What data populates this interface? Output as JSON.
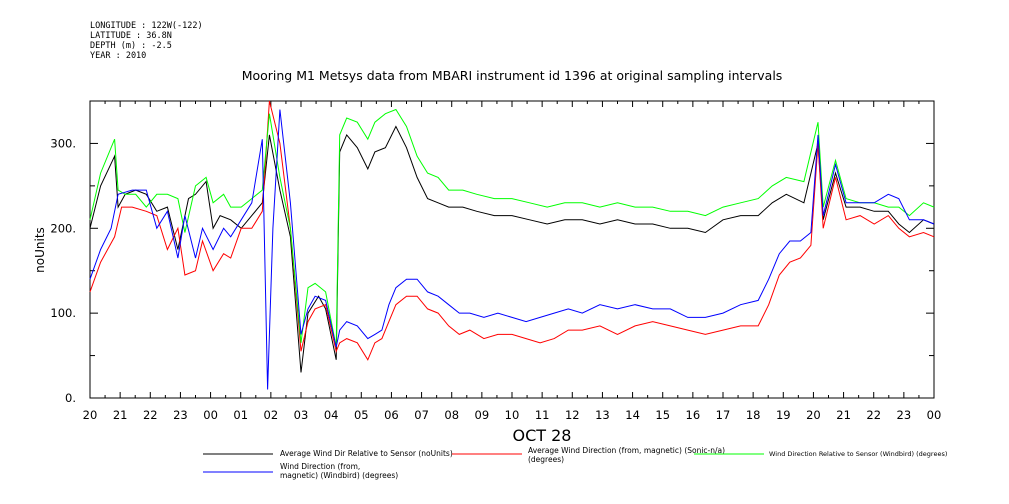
{
  "header": {
    "longitude": "LONGITUDE : 122W(-122)",
    "latitude": "LATITUDE : 36.8N",
    "depth": "DEPTH (m) : -2.5",
    "year": "YEAR : 2010"
  },
  "chart_data": {
    "type": "line",
    "title": "Mooring M1 Metsys data from MBARI instrument id 1396 at original sampling intervals",
    "xlabel": "OCT 28",
    "ylabel": "noUnits",
    "x_ticks": [
      "20",
      "21",
      "22",
      "23",
      "00",
      "01",
      "02",
      "03",
      "04",
      "05",
      "06",
      "07",
      "08",
      "09",
      "10",
      "11",
      "12",
      "13",
      "14",
      "15",
      "16",
      "17",
      "18",
      "19",
      "20",
      "21",
      "22",
      "23",
      "00"
    ],
    "ylim": [
      0,
      350
    ],
    "y_ticks": [
      0,
      100,
      200,
      300
    ],
    "y_tick_labels": [
      "0.",
      "100.",
      "200.",
      "300."
    ],
    "grid": false,
    "legend_placement": "bottom",
    "series": [
      {
        "name": "Average Wind Dir Relative to Sensor (noUnits)",
        "color": "#000000",
        "points": [
          [
            20.0,
            200
          ],
          [
            20.3,
            250
          ],
          [
            20.7,
            285
          ],
          [
            20.8,
            225
          ],
          [
            21.0,
            240
          ],
          [
            21.3,
            245
          ],
          [
            21.6,
            240
          ],
          [
            21.9,
            220
          ],
          [
            22.2,
            225
          ],
          [
            22.5,
            175
          ],
          [
            22.8,
            235
          ],
          [
            23.0,
            240
          ],
          [
            23.3,
            255
          ],
          [
            23.5,
            200
          ],
          [
            23.7,
            215
          ],
          [
            24.0,
            210
          ],
          [
            24.3,
            200
          ],
          [
            24.6,
            215
          ],
          [
            24.9,
            230
          ],
          [
            25.1,
            310
          ],
          [
            25.4,
            245
          ],
          [
            25.7,
            190
          ],
          [
            26.0,
            30
          ],
          [
            26.2,
            100
          ],
          [
            26.5,
            120
          ],
          [
            26.7,
            105
          ],
          [
            27.0,
            45
          ],
          [
            27.1,
            290
          ],
          [
            27.3,
            310
          ],
          [
            27.6,
            295
          ],
          [
            27.9,
            270
          ],
          [
            28.1,
            290
          ],
          [
            28.4,
            295
          ],
          [
            28.7,
            320
          ],
          [
            29.0,
            295
          ],
          [
            29.3,
            260
          ],
          [
            29.6,
            235
          ],
          [
            29.9,
            230
          ],
          [
            30.2,
            225
          ],
          [
            30.6,
            225
          ],
          [
            31.0,
            220
          ],
          [
            31.5,
            215
          ],
          [
            32.0,
            215
          ],
          [
            32.5,
            210
          ],
          [
            33.0,
            205
          ],
          [
            33.5,
            210
          ],
          [
            34.0,
            210
          ],
          [
            34.5,
            205
          ],
          [
            35.0,
            210
          ],
          [
            35.5,
            205
          ],
          [
            36.0,
            205
          ],
          [
            36.5,
            200
          ],
          [
            37.0,
            200
          ],
          [
            37.5,
            195
          ],
          [
            38.0,
            210
          ],
          [
            38.5,
            215
          ],
          [
            39.0,
            215
          ],
          [
            39.4,
            230
          ],
          [
            39.8,
            240
          ],
          [
            40.3,
            230
          ],
          [
            40.7,
            300
          ],
          [
            40.85,
            210
          ],
          [
            41.2,
            265
          ],
          [
            41.5,
            225
          ],
          [
            41.9,
            225
          ],
          [
            42.3,
            220
          ],
          [
            42.7,
            220
          ],
          [
            43.0,
            205
          ],
          [
            43.3,
            195
          ],
          [
            43.7,
            210
          ],
          [
            44.0,
            205
          ]
        ]
      },
      {
        "name": "Average Wind Direction (from, magnetic) (Sonic-n/a) (degrees)",
        "color": "#ff0000",
        "points": [
          [
            20.0,
            125
          ],
          [
            20.3,
            160
          ],
          [
            20.7,
            190
          ],
          [
            20.9,
            225
          ],
          [
            21.2,
            225
          ],
          [
            21.6,
            220
          ],
          [
            21.9,
            215
          ],
          [
            22.2,
            175
          ],
          [
            22.5,
            200
          ],
          [
            22.7,
            145
          ],
          [
            23.0,
            150
          ],
          [
            23.2,
            185
          ],
          [
            23.5,
            150
          ],
          [
            23.8,
            170
          ],
          [
            24.0,
            165
          ],
          [
            24.3,
            200
          ],
          [
            24.6,
            200
          ],
          [
            24.9,
            220
          ],
          [
            25.1,
            350
          ],
          [
            25.4,
            300
          ],
          [
            25.7,
            200
          ],
          [
            26.0,
            55
          ],
          [
            26.2,
            90
          ],
          [
            26.4,
            105
          ],
          [
            26.7,
            110
          ],
          [
            27.0,
            55
          ],
          [
            27.1,
            65
          ],
          [
            27.3,
            70
          ],
          [
            27.6,
            65
          ],
          [
            27.9,
            45
          ],
          [
            28.1,
            65
          ],
          [
            28.3,
            70
          ],
          [
            28.5,
            90
          ],
          [
            28.7,
            110
          ],
          [
            29.0,
            120
          ],
          [
            29.3,
            120
          ],
          [
            29.6,
            105
          ],
          [
            29.9,
            100
          ],
          [
            30.2,
            85
          ],
          [
            30.5,
            75
          ],
          [
            30.8,
            80
          ],
          [
            31.2,
            70
          ],
          [
            31.6,
            75
          ],
          [
            32.0,
            75
          ],
          [
            32.4,
            70
          ],
          [
            32.8,
            65
          ],
          [
            33.2,
            70
          ],
          [
            33.6,
            80
          ],
          [
            34.0,
            80
          ],
          [
            34.5,
            85
          ],
          [
            35.0,
            75
          ],
          [
            35.5,
            85
          ],
          [
            36.0,
            90
          ],
          [
            36.5,
            85
          ],
          [
            37.0,
            80
          ],
          [
            37.5,
            75
          ],
          [
            38.0,
            80
          ],
          [
            38.5,
            85
          ],
          [
            39.0,
            85
          ],
          [
            39.3,
            110
          ],
          [
            39.6,
            145
          ],
          [
            39.9,
            160
          ],
          [
            40.2,
            165
          ],
          [
            40.5,
            180
          ],
          [
            40.7,
            300
          ],
          [
            40.85,
            200
          ],
          [
            41.2,
            260
          ],
          [
            41.5,
            210
          ],
          [
            41.9,
            215
          ],
          [
            42.3,
            205
          ],
          [
            42.7,
            215
          ],
          [
            43.0,
            200
          ],
          [
            43.3,
            190
          ],
          [
            43.7,
            195
          ],
          [
            44.0,
            190
          ]
        ]
      },
      {
        "name": "Wind Direction Relative to Sensor (Windbird) (degrees)",
        "color": "#00ff00",
        "points": [
          [
            20.0,
            210
          ],
          [
            20.3,
            265
          ],
          [
            20.7,
            305
          ],
          [
            20.8,
            245
          ],
          [
            21.0,
            240
          ],
          [
            21.3,
            240
          ],
          [
            21.6,
            225
          ],
          [
            21.9,
            240
          ],
          [
            22.2,
            240
          ],
          [
            22.5,
            235
          ],
          [
            22.7,
            195
          ],
          [
            23.0,
            250
          ],
          [
            23.3,
            260
          ],
          [
            23.5,
            230
          ],
          [
            23.8,
            240
          ],
          [
            24.0,
            225
          ],
          [
            24.3,
            225
          ],
          [
            24.6,
            235
          ],
          [
            24.9,
            245
          ],
          [
            25.1,
            335
          ],
          [
            25.4,
            260
          ],
          [
            25.7,
            200
          ],
          [
            26.0,
            65
          ],
          [
            26.2,
            130
          ],
          [
            26.4,
            135
          ],
          [
            26.7,
            125
          ],
          [
            27.0,
            60
          ],
          [
            27.1,
            310
          ],
          [
            27.3,
            330
          ],
          [
            27.6,
            325
          ],
          [
            27.9,
            305
          ],
          [
            28.1,
            325
          ],
          [
            28.4,
            335
          ],
          [
            28.7,
            340
          ],
          [
            29.0,
            320
          ],
          [
            29.3,
            285
          ],
          [
            29.6,
            265
          ],
          [
            29.9,
            260
          ],
          [
            30.2,
            245
          ],
          [
            30.6,
            245
          ],
          [
            31.0,
            240
          ],
          [
            31.5,
            235
          ],
          [
            32.0,
            235
          ],
          [
            32.5,
            230
          ],
          [
            33.0,
            225
          ],
          [
            33.5,
            230
          ],
          [
            34.0,
            230
          ],
          [
            34.5,
            225
          ],
          [
            35.0,
            230
          ],
          [
            35.5,
            225
          ],
          [
            36.0,
            225
          ],
          [
            36.5,
            220
          ],
          [
            37.0,
            220
          ],
          [
            37.5,
            215
          ],
          [
            38.0,
            225
          ],
          [
            38.5,
            230
          ],
          [
            39.0,
            235
          ],
          [
            39.4,
            250
          ],
          [
            39.8,
            260
          ],
          [
            40.3,
            255
          ],
          [
            40.7,
            325
          ],
          [
            40.85,
            225
          ],
          [
            41.2,
            280
          ],
          [
            41.5,
            235
          ],
          [
            41.9,
            230
          ],
          [
            42.3,
            230
          ],
          [
            42.7,
            225
          ],
          [
            43.0,
            225
          ],
          [
            43.3,
            215
          ],
          [
            43.7,
            230
          ],
          [
            44.0,
            225
          ]
        ]
      },
      {
        "name": "Wind Direction (from, magnetic) (Windbird) (degrees)",
        "color": "#0000ff",
        "points": [
          [
            20.0,
            140
          ],
          [
            20.3,
            175
          ],
          [
            20.6,
            200
          ],
          [
            20.8,
            240
          ],
          [
            21.2,
            245
          ],
          [
            21.6,
            245
          ],
          [
            21.9,
            200
          ],
          [
            22.2,
            220
          ],
          [
            22.5,
            165
          ],
          [
            22.7,
            215
          ],
          [
            23.0,
            165
          ],
          [
            23.2,
            200
          ],
          [
            23.5,
            175
          ],
          [
            23.8,
            200
          ],
          [
            24.0,
            190
          ],
          [
            24.3,
            210
          ],
          [
            24.6,
            230
          ],
          [
            24.9,
            305
          ],
          [
            25.05,
            10
          ],
          [
            25.2,
            200
          ],
          [
            25.4,
            340
          ],
          [
            25.7,
            230
          ],
          [
            26.0,
            75
          ],
          [
            26.2,
            105
          ],
          [
            26.4,
            120
          ],
          [
            26.7,
            115
          ],
          [
            27.0,
            60
          ],
          [
            27.1,
            80
          ],
          [
            27.3,
            90
          ],
          [
            27.6,
            85
          ],
          [
            27.9,
            70
          ],
          [
            28.1,
            75
          ],
          [
            28.3,
            80
          ],
          [
            28.5,
            110
          ],
          [
            28.7,
            130
          ],
          [
            29.0,
            140
          ],
          [
            29.3,
            140
          ],
          [
            29.6,
            125
          ],
          [
            29.9,
            120
          ],
          [
            30.2,
            110
          ],
          [
            30.5,
            100
          ],
          [
            30.8,
            100
          ],
          [
            31.2,
            95
          ],
          [
            31.6,
            100
          ],
          [
            32.0,
            95
          ],
          [
            32.4,
            90
          ],
          [
            32.8,
            95
          ],
          [
            33.2,
            100
          ],
          [
            33.6,
            105
          ],
          [
            34.0,
            100
          ],
          [
            34.5,
            110
          ],
          [
            35.0,
            105
          ],
          [
            35.5,
            110
          ],
          [
            36.0,
            105
          ],
          [
            36.5,
            105
          ],
          [
            37.0,
            95
          ],
          [
            37.5,
            95
          ],
          [
            38.0,
            100
          ],
          [
            38.5,
            110
          ],
          [
            39.0,
            115
          ],
          [
            39.3,
            140
          ],
          [
            39.6,
            170
          ],
          [
            39.9,
            185
          ],
          [
            40.2,
            185
          ],
          [
            40.5,
            195
          ],
          [
            40.7,
            310
          ],
          [
            40.85,
            215
          ],
          [
            41.2,
            275
          ],
          [
            41.5,
            230
          ],
          [
            41.9,
            230
          ],
          [
            42.3,
            230
          ],
          [
            42.7,
            240
          ],
          [
            43.0,
            235
          ],
          [
            43.3,
            210
          ],
          [
            43.7,
            210
          ],
          [
            44.0,
            205
          ]
        ]
      }
    ]
  }
}
